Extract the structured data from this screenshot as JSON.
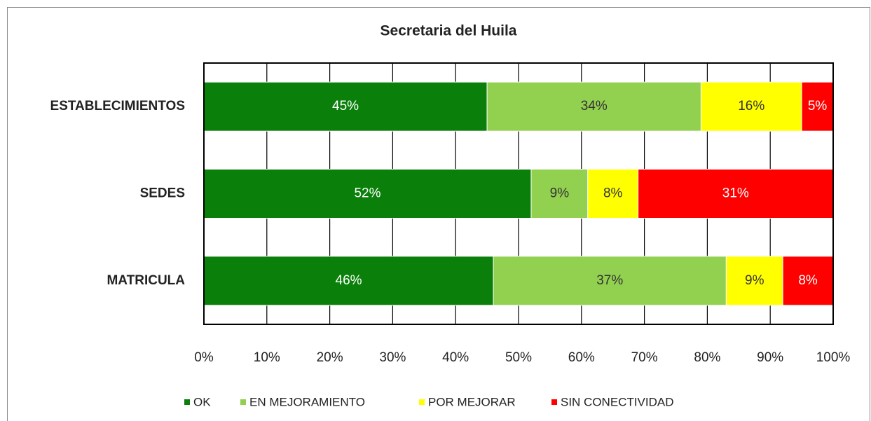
{
  "chart_data": {
    "type": "stacked_barh",
    "title": "Secretaria del Huila",
    "categories": [
      "ESTABLECIMIENTOS",
      "SEDES",
      "MATRICULA"
    ],
    "series": [
      {
        "name": "OK",
        "color": "#0a800a",
        "label_color": "#ffffff",
        "values": [
          45,
          52,
          46
        ],
        "value_labels": [
          "45%",
          "52%",
          "46%"
        ]
      },
      {
        "name": "EN MEJORAMIENTO",
        "color": "#92d050",
        "label_color": "#333333",
        "values": [
          34,
          9,
          37
        ],
        "value_labels": [
          "34%",
          "9%",
          "37%"
        ]
      },
      {
        "name": "POR MEJORAR",
        "color": "#ffff00",
        "label_color": "#333333",
        "values": [
          16,
          8,
          9
        ],
        "value_labels": [
          "16%",
          "8%",
          "9%"
        ]
      },
      {
        "name": "SIN CONECTIVIDAD",
        "color": "#ff0000",
        "label_color": "#ffffff",
        "values": [
          5,
          31,
          8
        ],
        "value_labels": [
          "5%",
          "31%",
          "8%"
        ]
      }
    ],
    "xlim": [
      0,
      100
    ],
    "xticks": [
      {
        "value": 0,
        "label": "0%"
      },
      {
        "value": 10,
        "label": "10%"
      },
      {
        "value": 20,
        "label": "20%"
      },
      {
        "value": 30,
        "label": "30%"
      },
      {
        "value": 40,
        "label": "40%"
      },
      {
        "value": 50,
        "label": "50%"
      },
      {
        "value": 60,
        "label": "60%"
      },
      {
        "value": 70,
        "label": "70%"
      },
      {
        "value": 80,
        "label": "80%"
      },
      {
        "value": 90,
        "label": "90%"
      },
      {
        "value": 100,
        "label": "100%"
      }
    ],
    "grid": true,
    "legend": "bottom"
  }
}
